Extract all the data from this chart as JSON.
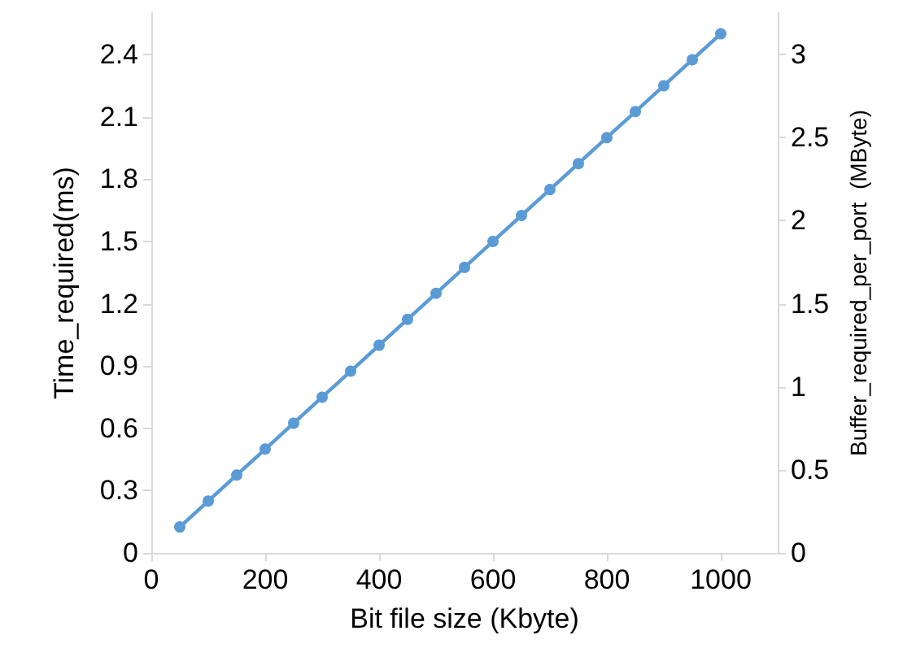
{
  "chart_data": {
    "type": "line",
    "xlabel": "Bit file size (Kbyte)",
    "ylabel": "Time_required(ms)",
    "y2label": "Buffer_required_per_port  (MByte)",
    "x": [
      50,
      100,
      150,
      200,
      250,
      300,
      350,
      400,
      450,
      500,
      550,
      600,
      650,
      700,
      750,
      800,
      850,
      900,
      950,
      1000
    ],
    "series": [
      {
        "color": "#5b9bd5",
        "values": [
          0.125,
          0.25,
          0.375,
          0.5,
          0.625,
          0.75,
          0.875,
          1,
          1.125,
          1.25,
          1.375,
          1.5,
          1.625,
          1.75,
          1.875,
          2,
          2.125,
          2.25,
          2.375,
          2.5
        ]
      }
    ],
    "xlim": [
      0,
      1100
    ],
    "xticks": [
      0,
      200,
      400,
      600,
      800,
      1000
    ],
    "ylim": [
      0,
      2.6
    ],
    "yticks": [
      0,
      0.3,
      0.6,
      0.9,
      1.2,
      1.5,
      1.8,
      2.1,
      2.4
    ],
    "y2lim": [
      0,
      3.25
    ],
    "y2ticks": [
      0,
      0.5,
      1,
      1.5,
      2,
      2.5,
      3
    ],
    "grid": false,
    "marker": "circle",
    "line_style": "solid"
  }
}
